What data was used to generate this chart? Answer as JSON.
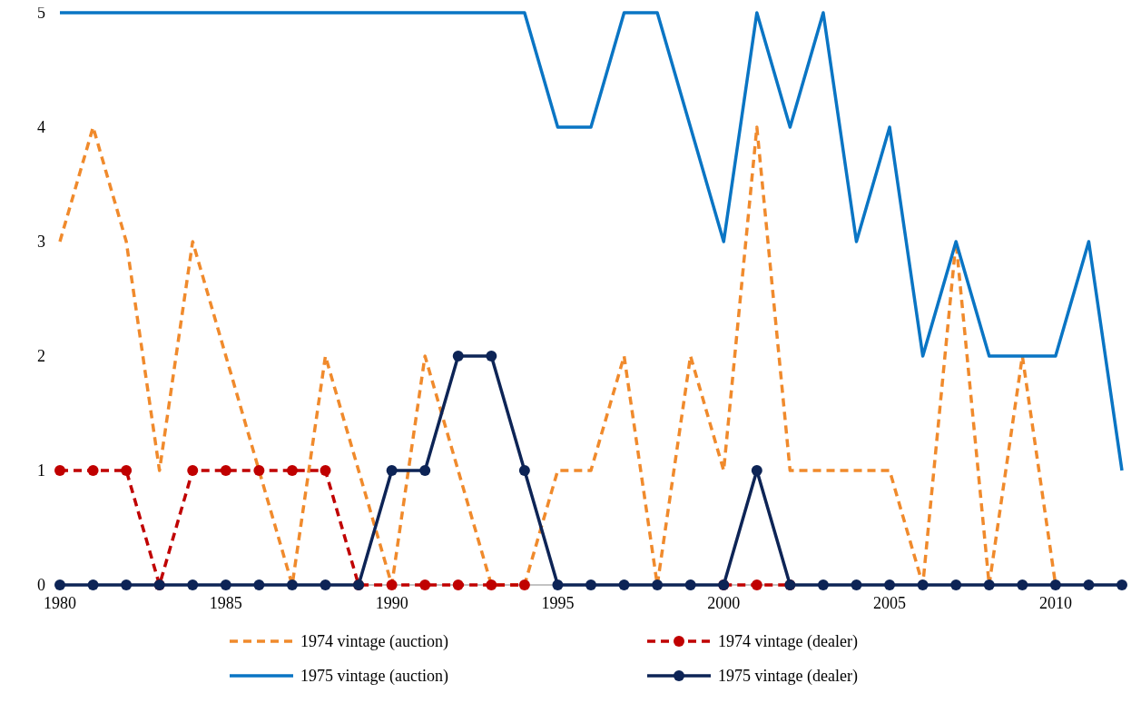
{
  "chart_data": {
    "type": "line",
    "x": [
      1980,
      1981,
      1982,
      1983,
      1984,
      1985,
      1986,
      1987,
      1988,
      1989,
      1990,
      1991,
      1992,
      1993,
      1994,
      1995,
      1996,
      1997,
      1998,
      1999,
      2000,
      2001,
      2002,
      2003,
      2004,
      2005,
      2006,
      2007,
      2008,
      2009,
      2010,
      2011,
      2012
    ],
    "xlim": [
      1980,
      2012
    ],
    "xticks": [
      1980,
      1985,
      1990,
      1995,
      2000,
      2005,
      2010
    ],
    "ylim": [
      0,
      5
    ],
    "yticks": [
      0,
      1,
      2,
      3,
      4,
      5
    ],
    "grid": false,
    "legend": "bottom",
    "series": [
      {
        "name": "1974 vintage (auction)",
        "color": "#f08a2c",
        "line_style": "dashed",
        "marker": "none",
        "values": [
          3,
          4,
          3,
          1,
          3,
          2,
          1,
          0,
          2,
          1,
          0,
          2,
          1,
          0,
          0,
          1,
          1,
          2,
          0,
          2,
          1,
          4,
          1,
          1,
          1,
          1,
          0,
          3,
          0,
          2,
          0,
          null,
          null
        ]
      },
      {
        "name": "1974 vintage (dealer)",
        "color": "#c00000",
        "line_style": "dashed",
        "marker": "circle",
        "values": [
          1,
          1,
          1,
          0,
          1,
          1,
          1,
          1,
          1,
          0,
          0,
          0,
          0,
          0,
          0,
          null,
          null,
          null,
          null,
          null,
          0,
          0,
          0,
          null,
          null,
          null,
          null,
          null,
          null,
          null,
          null,
          null,
          null
        ]
      },
      {
        "name": "1975 vintage (auction)",
        "color": "#0a75c4",
        "line_style": "solid",
        "marker": "none",
        "values": [
          5,
          5,
          5,
          5,
          5,
          5,
          5,
          5,
          5,
          5,
          5,
          5,
          5,
          5,
          5,
          4,
          4,
          5,
          5,
          4,
          3,
          5,
          4,
          5,
          3,
          4,
          2,
          3,
          2,
          2,
          2,
          3,
          1
        ]
      },
      {
        "name": "1975 vintage (dealer)",
        "color": "#0d2456",
        "line_style": "solid",
        "marker": "circle",
        "values": [
          0,
          0,
          0,
          0,
          0,
          0,
          0,
          0,
          0,
          0,
          1,
          1,
          2,
          2,
          1,
          0,
          0,
          0,
          0,
          0,
          0,
          1,
          0,
          0,
          0,
          0,
          0,
          0,
          0,
          0,
          0,
          0,
          0
        ]
      }
    ]
  }
}
